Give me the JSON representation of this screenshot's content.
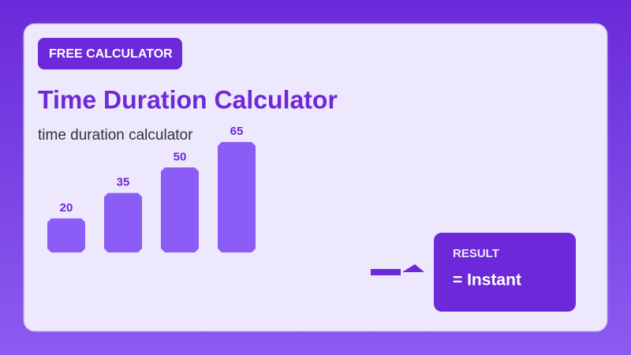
{
  "badge": "FREE CALCULATOR",
  "title": "Time Duration Calculator",
  "subtitle": "time duration calculator",
  "chart_data": {
    "type": "bar",
    "values": [
      20,
      35,
      50,
      65
    ],
    "color": "#8b5cf6"
  },
  "result": {
    "label": "RESULT",
    "value": "= Instant"
  }
}
